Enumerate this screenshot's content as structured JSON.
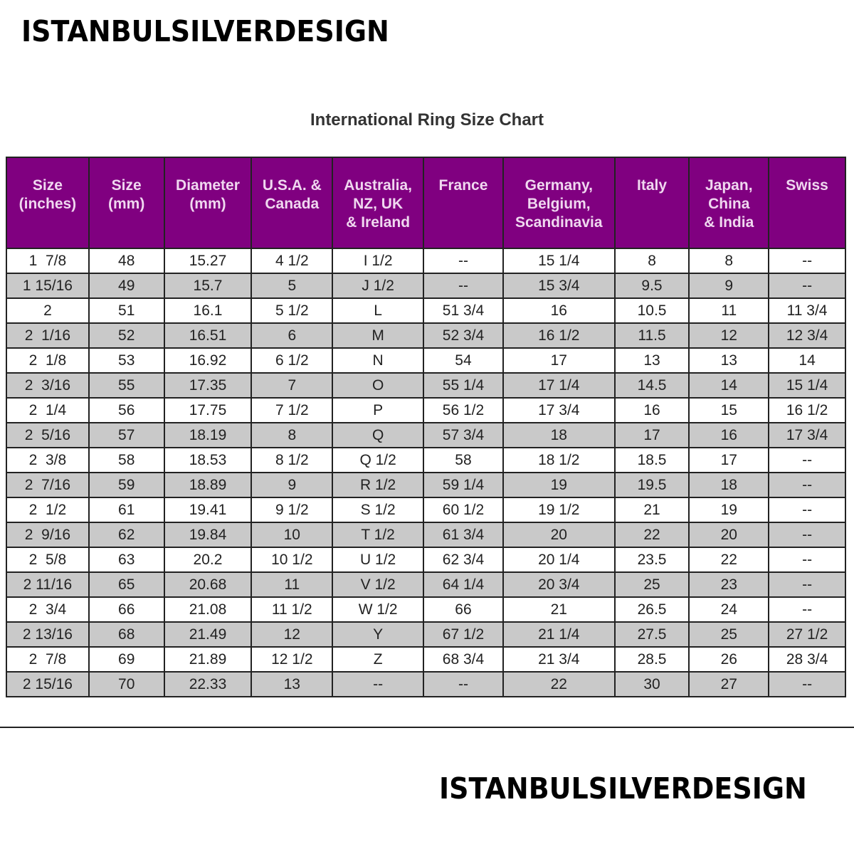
{
  "brand": "ISTANBULSILVERDESIGN",
  "title": "International Ring Size Chart",
  "colors": {
    "header_bg": "#800080",
    "header_text": "#f0d8f0",
    "alt_row": "#c9c9c9"
  },
  "columns": [
    [
      "Size",
      "(inches)"
    ],
    [
      "Size",
      "(mm)"
    ],
    [
      "Diameter",
      "(mm)"
    ],
    [
      "U.S.A. &",
      "Canada"
    ],
    [
      "Australia,",
      "NZ, UK",
      "& Ireland"
    ],
    [
      "France"
    ],
    [
      "Germany,",
      "Belgium,",
      "Scandinavia"
    ],
    [
      "Italy"
    ],
    [
      "Japan,",
      "China",
      "& India"
    ],
    [
      "Swiss"
    ]
  ],
  "rows": [
    [
      "1  7/8",
      "48",
      "15.27",
      "4 1/2",
      "I 1/2",
      "--",
      "15 1/4",
      "8",
      "8",
      "--"
    ],
    [
      "1 15/16",
      "49",
      "15.7",
      "5",
      "J 1/2",
      "--",
      "15 3/4",
      "9.5",
      "9",
      "--"
    ],
    [
      "2",
      "51",
      "16.1",
      "5 1/2",
      "L",
      "51 3/4",
      "16",
      "10.5",
      "11",
      "11 3/4"
    ],
    [
      "2  1/16",
      "52",
      "16.51",
      "6",
      "M",
      "52 3/4",
      "16 1/2",
      "11.5",
      "12",
      "12 3/4"
    ],
    [
      "2  1/8",
      "53",
      "16.92",
      "6 1/2",
      "N",
      "54",
      "17",
      "13",
      "13",
      "14"
    ],
    [
      "2  3/16",
      "55",
      "17.35",
      "7",
      "O",
      "55 1/4",
      "17 1/4",
      "14.5",
      "14",
      "15 1/4"
    ],
    [
      "2  1/4",
      "56",
      "17.75",
      "7 1/2",
      "P",
      "56 1/2",
      "17 3/4",
      "16",
      "15",
      "16 1/2"
    ],
    [
      "2  5/16",
      "57",
      "18.19",
      "8",
      "Q",
      "57 3/4",
      "18",
      "17",
      "16",
      "17 3/4"
    ],
    [
      "2  3/8",
      "58",
      "18.53",
      "8 1/2",
      "Q 1/2",
      "58",
      "18 1/2",
      "18.5",
      "17",
      "--"
    ],
    [
      "2  7/16",
      "59",
      "18.89",
      "9",
      "R 1/2",
      "59 1/4",
      "19",
      "19.5",
      "18",
      "--"
    ],
    [
      "2  1/2",
      "61",
      "19.41",
      "9 1/2",
      "S 1/2",
      "60 1/2",
      "19 1/2",
      "21",
      "19",
      "--"
    ],
    [
      "2  9/16",
      "62",
      "19.84",
      "10",
      "T 1/2",
      "61 3/4",
      "20",
      "22",
      "20",
      "--"
    ],
    [
      "2  5/8",
      "63",
      "20.2",
      "10 1/2",
      "U 1/2",
      "62 3/4",
      "20 1/4",
      "23.5",
      "22",
      "--"
    ],
    [
      "2 11/16",
      "65",
      "20.68",
      "11",
      "V 1/2",
      "64 1/4",
      "20 3/4",
      "25",
      "23",
      "--"
    ],
    [
      "2  3/4",
      "66",
      "21.08",
      "11 1/2",
      "W 1/2",
      "66",
      "21",
      "26.5",
      "24",
      "--"
    ],
    [
      "2 13/16",
      "68",
      "21.49",
      "12",
      "Y",
      "67 1/2",
      "21 1/4",
      "27.5",
      "25",
      "27 1/2"
    ],
    [
      "2  7/8",
      "69",
      "21.89",
      "12 1/2",
      "Z",
      "68 3/4",
      "21 3/4",
      "28.5",
      "26",
      "28 3/4"
    ],
    [
      "2 15/16",
      "70",
      "22.33",
      "13",
      "--",
      "--",
      "22",
      "30",
      "27",
      "--"
    ]
  ]
}
